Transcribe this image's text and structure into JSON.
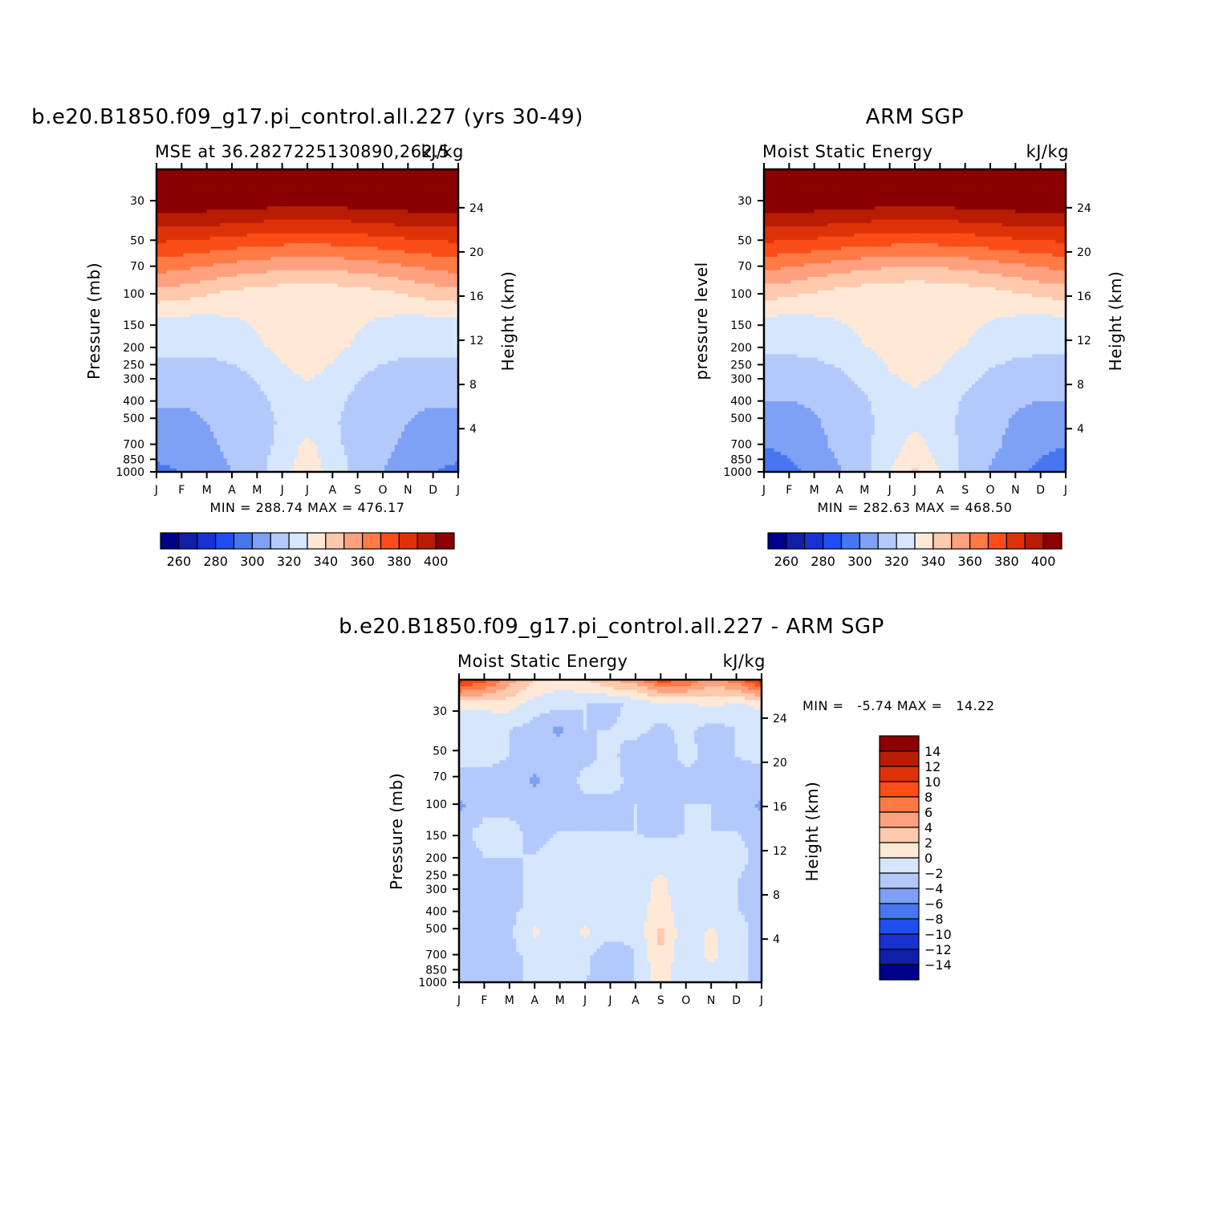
{
  "colors": {
    "diverging_scale": [
      "#00008b",
      "#0f1fa8",
      "#1732cf",
      "#1f4ef0",
      "#4677f0",
      "#7ea0f5",
      "#b3c9fb",
      "#d5e6fd",
      "#ffe8d6",
      "#ffc9ad",
      "#ffa17e",
      "#ff7a45",
      "#fa4d17",
      "#dd3208",
      "#b81d03",
      "#8b0000"
    ]
  },
  "chart_data": [
    {
      "id": "model",
      "type": "heatmap",
      "title": "b.e20.B1850.f09_g17.pi_control.all.227 (yrs 30-49)",
      "subtitle_left": "MSE at 36.2827225130890,262.5",
      "subtitle_right": "kJ/kg",
      "ylabel": "Pressure (mb)",
      "y2label": "Height (km)",
      "x": [
        "J",
        "F",
        "M",
        "A",
        "M",
        "J",
        "J",
        "A",
        "S",
        "O",
        "N",
        "D",
        "J"
      ],
      "pressure_ticks": [
        30,
        50,
        70,
        100,
        150,
        200,
        250,
        300,
        400,
        500,
        700,
        850,
        1000
      ],
      "height_ticks": [
        24,
        20,
        16,
        12,
        8,
        4
      ],
      "stats": "MIN = 288.74 MAX = 476.17",
      "colorbar": {
        "labels": [
          "260",
          "280",
          "300",
          "320",
          "340",
          "360",
          "380",
          "400"
        ],
        "levels": [
          250,
          260,
          270,
          280,
          290,
          300,
          310,
          320,
          330,
          340,
          350,
          360,
          370,
          380,
          390,
          400,
          410
        ]
      },
      "values_kJkg": [
        [
          410,
          410,
          410,
          410,
          410,
          410,
          410,
          410,
          410,
          410,
          410,
          410,
          410
        ],
        [
          410,
          410,
          410,
          410,
          410,
          410,
          410,
          410,
          410,
          410,
          410,
          410,
          410
        ],
        [
          396,
          396,
          395,
          393,
          392,
          390,
          390,
          390,
          392,
          393,
          395,
          396,
          396
        ],
        [
          378,
          377,
          375,
          373,
          371,
          370,
          369,
          370,
          371,
          373,
          375,
          377,
          378
        ],
        [
          362,
          360,
          357,
          354,
          352,
          350,
          349,
          350,
          352,
          354,
          357,
          360,
          362
        ],
        [
          345,
          343,
          340,
          336,
          334,
          333,
          333,
          333,
          334,
          336,
          340,
          343,
          345
        ],
        [
          327,
          327,
          327,
          329,
          331,
          332,
          332,
          332,
          331,
          329,
          327,
          327,
          327
        ],
        [
          322,
          322,
          322,
          325,
          329,
          332,
          333,
          332,
          329,
          325,
          322,
          322,
          322
        ],
        [
          317,
          317,
          317,
          318,
          322,
          329,
          332,
          329,
          322,
          318,
          317,
          317,
          317
        ],
        [
          312,
          312,
          313,
          315,
          318,
          323,
          327,
          323,
          318,
          315,
          313,
          312,
          312
        ],
        [
          307,
          307,
          310,
          313,
          317,
          321,
          325,
          321,
          317,
          313,
          310,
          307,
          307
        ],
        [
          303,
          304,
          308,
          312,
          317,
          322,
          334,
          322,
          317,
          312,
          308,
          304,
          303
        ],
        [
          298,
          300,
          305,
          310,
          316,
          327,
          336,
          327,
          316,
          310,
          305,
          300,
          298
        ]
      ]
    },
    {
      "id": "obs",
      "type": "heatmap",
      "title": "ARM SGP",
      "subtitle_left": "Moist Static Energy",
      "subtitle_right": "kJ/kg",
      "ylabel": "pressure level",
      "y2label": "Height (km)",
      "x": [
        "J",
        "F",
        "M",
        "A",
        "M",
        "J",
        "J",
        "A",
        "S",
        "O",
        "N",
        "D",
        "J"
      ],
      "pressure_ticks": [
        30,
        50,
        70,
        100,
        150,
        200,
        250,
        300,
        400,
        500,
        700,
        850,
        1000
      ],
      "height_ticks": [
        24,
        20,
        16,
        12,
        8,
        4
      ],
      "stats": "MIN = 282.63 MAX = 468.50",
      "colorbar": {
        "labels": [
          "260",
          "280",
          "300",
          "320",
          "340",
          "360",
          "380",
          "400"
        ],
        "levels": [
          250,
          260,
          270,
          280,
          290,
          300,
          310,
          320,
          330,
          340,
          350,
          360,
          370,
          380,
          390,
          400,
          410
        ]
      },
      "values_kJkg": [
        [
          410,
          410,
          410,
          410,
          410,
          410,
          410,
          410,
          410,
          410,
          410,
          410,
          410
        ],
        [
          410,
          410,
          410,
          410,
          410,
          410,
          410,
          410,
          410,
          410,
          410,
          410,
          410
        ],
        [
          396,
          396,
          395,
          393,
          392,
          390,
          390,
          390,
          392,
          393,
          395,
          396,
          396
        ],
        [
          378,
          377,
          375,
          373,
          371,
          370,
          369,
          370,
          371,
          373,
          375,
          377,
          378
        ],
        [
          360,
          358,
          355,
          352,
          350,
          348,
          347,
          348,
          350,
          352,
          355,
          358,
          360
        ],
        [
          343,
          341,
          338,
          335,
          333,
          332,
          331,
          332,
          333,
          335,
          338,
          341,
          343
        ],
        [
          327,
          327,
          328,
          330,
          332,
          334,
          335,
          334,
          332,
          330,
          328,
          327,
          327
        ],
        [
          322,
          322,
          323,
          326,
          330,
          333,
          334,
          333,
          330,
          326,
          323,
          322,
          322
        ],
        [
          316,
          316,
          317,
          319,
          324,
          330,
          333,
          330,
          324,
          319,
          317,
          316,
          316
        ],
        [
          311,
          311,
          312,
          315,
          319,
          325,
          329,
          325,
          319,
          315,
          312,
          311,
          311
        ],
        [
          305,
          305,
          309,
          313,
          318,
          323,
          328,
          323,
          318,
          313,
          309,
          305,
          305
        ],
        [
          300,
          302,
          307,
          312,
          318,
          325,
          335,
          325,
          318,
          312,
          307,
          302,
          300
        ],
        [
          294,
          297,
          303,
          309,
          316,
          330,
          342,
          330,
          316,
          309,
          303,
          297,
          294
        ]
      ]
    },
    {
      "id": "diff",
      "type": "heatmap",
      "title": "b.e20.B1850.f09_g17.pi_control.all.227 - ARM SGP",
      "subtitle_left": "Moist Static Energy",
      "subtitle_right": "kJ/kg",
      "ylabel": "Pressure (mb)",
      "y2label": "Height (km)",
      "x": [
        "J",
        "F",
        "M",
        "A",
        "M",
        "J",
        "J",
        "A",
        "S",
        "O",
        "N",
        "D",
        "J"
      ],
      "pressure_ticks": [
        30,
        50,
        70,
        100,
        150,
        200,
        250,
        300,
        400,
        500,
        700,
        850,
        1000
      ],
      "height_ticks": [
        24,
        20,
        16,
        12,
        8,
        4
      ],
      "stats": "MIN =   -5.74 MAX =   14.22",
      "colorbar": {
        "labels": [
          "14",
          "12",
          "10",
          "8",
          "6",
          "4",
          "2",
          "0",
          "-2",
          "-4",
          "-6",
          "-8",
          "-10",
          "-12",
          "-14"
        ],
        "levels": [
          -16,
          -14,
          -12,
          -10,
          -8,
          -6,
          -4,
          -2,
          0,
          2,
          4,
          6,
          8,
          10,
          12,
          14,
          16
        ]
      },
      "values_kJkg": [
        [
          11,
          9,
          5,
          2,
          1,
          2,
          4,
          5,
          9,
          8,
          5,
          7,
          11
        ],
        [
          0.5,
          0.5,
          0.8,
          -1,
          -1.5,
          -2,
          -2.5,
          -1.5,
          -1,
          -0.5,
          0.5,
          -0.5,
          0.5
        ],
        [
          -1.5,
          -1.5,
          -2,
          -3,
          -4.5,
          -2,
          -2,
          -1.5,
          -2.5,
          -1.5,
          -3,
          -2,
          -1.5
        ],
        [
          -1.5,
          -1.5,
          -2,
          -2.5,
          -2.5,
          -2.5,
          -1.5,
          -3,
          -3,
          -1.5,
          -2.5,
          -2,
          -1.5
        ],
        [
          -2.5,
          -2.5,
          -2.5,
          -4.5,
          -3,
          -1.5,
          -1.5,
          -2.5,
          -3,
          -2.5,
          -2,
          -2.5,
          -3
        ],
        [
          -4.5,
          -2.5,
          -2.5,
          -2.5,
          -2.5,
          -2.5,
          -2.5,
          -2,
          -2.5,
          -2,
          -2,
          -2.5,
          -4.5
        ],
        [
          -2.5,
          -1.5,
          -1.5,
          -2.5,
          -2,
          -2,
          -2,
          -2,
          -2.5,
          -2,
          -2,
          -2,
          -2.5
        ],
        [
          -2.5,
          -2,
          -2,
          -2,
          -1.5,
          -1.5,
          -1.5,
          -1.5,
          -1,
          -1.5,
          -1.5,
          -1.5,
          -2.5
        ],
        [
          -2.5,
          -2.5,
          -2.5,
          -1.5,
          -1.5,
          -1.5,
          -1.5,
          -1,
          0.5,
          -1.5,
          -1.5,
          -2,
          -2.5
        ],
        [
          -2.5,
          -2.5,
          -2.5,
          -1.5,
          -1.5,
          -1.5,
          -1.5,
          -1,
          1,
          -1.5,
          -1.5,
          -2,
          -2.5
        ],
        [
          -2.5,
          -2.5,
          -2.5,
          0.5,
          -1,
          0.5,
          -1,
          -1.5,
          2.5,
          -1.5,
          0.5,
          -1.5,
          -2.5
        ],
        [
          -2.5,
          -2.5,
          -2.5,
          -1.5,
          -1.5,
          -1.5,
          -4,
          -2,
          2,
          -2,
          0.5,
          -1.5,
          -2.5
        ],
        [
          -2.5,
          -2.5,
          -2.5,
          -1.5,
          -1.5,
          -2,
          -2.5,
          -2,
          1,
          -2,
          -1.5,
          -1.5,
          -2.5
        ]
      ]
    }
  ]
}
